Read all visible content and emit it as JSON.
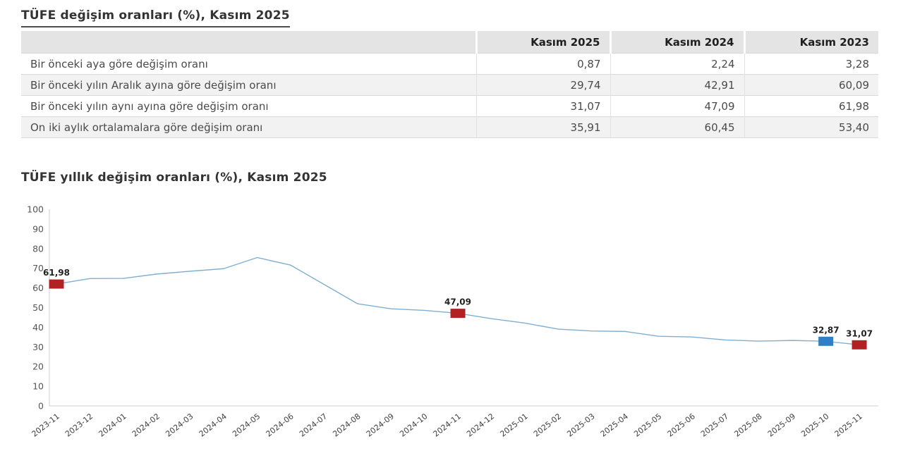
{
  "table_section": {
    "title": "TÜFE değişim oranları (%), Kasım 2025",
    "columns": [
      "Kasım 2025",
      "Kasım 2024",
      "Kasım 2023"
    ],
    "rows": [
      {
        "label": "Bir önceki aya göre değişim oranı",
        "values": [
          "0,87",
          "2,24",
          "3,28"
        ]
      },
      {
        "label": "Bir önceki yılın Aralık ayına göre değişim oranı",
        "values": [
          "29,74",
          "42,91",
          "60,09"
        ]
      },
      {
        "label": "Bir önceki yılın aynı ayına göre değişim oranı",
        "values": [
          "31,07",
          "47,09",
          "61,98"
        ]
      },
      {
        "label": "On iki aylık ortalamalara göre değişim oranı",
        "values": [
          "35,91",
          "60,45",
          "53,40"
        ]
      }
    ]
  },
  "chart_section": {
    "title": "TÜFE yıllık değişim oranları (%), Kasım 2025"
  },
  "chart_data": {
    "type": "line",
    "title": "TÜFE yıllık değişim oranları (%), Kasım 2025",
    "x": [
      "2023-11",
      "2023-12",
      "2024-01",
      "2024-02",
      "2024-03",
      "2024-04",
      "2024-05",
      "2024-06",
      "2024-07",
      "2024-08",
      "2024-09",
      "2024-10",
      "2024-11",
      "2024-12",
      "2025-01",
      "2025-02",
      "2025-03",
      "2025-04",
      "2025-05",
      "2025-06",
      "2025-07",
      "2025-08",
      "2025-09",
      "2025-10",
      "2025-11"
    ],
    "series": [
      {
        "name": "TÜFE yıllık değişim oranı (%)",
        "values": [
          61.98,
          64.77,
          64.86,
          67.07,
          68.5,
          69.8,
          75.45,
          71.6,
          61.78,
          51.97,
          49.38,
          48.58,
          47.09,
          44.38,
          42.12,
          39.05,
          38.1,
          37.86,
          35.41,
          35.05,
          33.52,
          32.95,
          33.29,
          32.87,
          31.07
        ]
      }
    ],
    "ylim": [
      0,
      100
    ],
    "ytick_step": 10,
    "grid": false,
    "legend": false,
    "line_color": "#7fafd1",
    "axis_color": "#cccccc",
    "annotations": [
      {
        "index": 0,
        "x": "2023-11",
        "value": 61.98,
        "label": "61,98",
        "marker_color": "#b22222"
      },
      {
        "index": 12,
        "x": "2024-11",
        "value": 47.09,
        "label": "47,09",
        "marker_color": "#b22222"
      },
      {
        "index": 23,
        "x": "2025-10",
        "value": 32.87,
        "label": "32,87",
        "marker_color": "#2e7fc5"
      },
      {
        "index": 24,
        "x": "2025-11",
        "value": 31.07,
        "label": "31,07",
        "marker_color": "#b22222"
      }
    ]
  }
}
